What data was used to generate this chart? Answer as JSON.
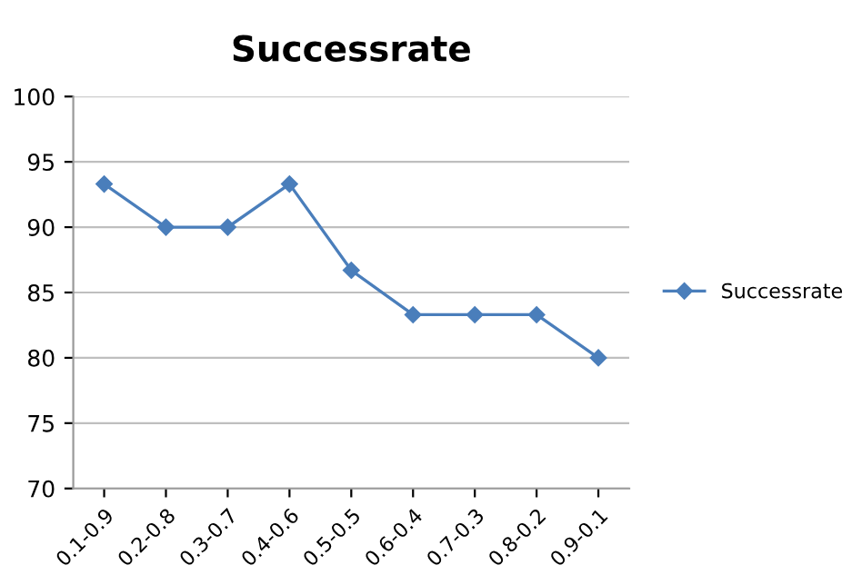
{
  "chart_data": {
    "type": "line",
    "title": "Successrate",
    "categories": [
      "0.1-0.9",
      "0.2-0.8",
      "0.3-0.7",
      "0.4-0.6",
      "0.5-0.5",
      "0.6-0.4",
      "0.7-0.3",
      "0.8-0.2",
      "0.9-0.1"
    ],
    "series": [
      {
        "name": "Successrate",
        "color": "#4a7ebb",
        "values": [
          93.3,
          90,
          90,
          93.3,
          86.7,
          83.3,
          83.3,
          83.3,
          80
        ]
      }
    ],
    "ylim": [
      70,
      100
    ],
    "yticks": [
      70,
      75,
      80,
      85,
      90,
      95,
      100
    ],
    "grid": "y",
    "legend": "right",
    "marker": "diamond",
    "line_style": "solid"
  }
}
